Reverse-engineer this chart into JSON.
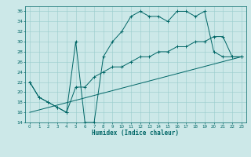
{
  "xlabel": "Humidex (Indice chaleur)",
  "ylabel": "",
  "xlim": [
    -0.5,
    23.5
  ],
  "ylim": [
    14,
    37
  ],
  "yticks": [
    14,
    16,
    18,
    20,
    22,
    24,
    26,
    28,
    30,
    32,
    34,
    36
  ],
  "xticks": [
    0,
    1,
    2,
    3,
    4,
    5,
    6,
    7,
    8,
    9,
    10,
    11,
    12,
    13,
    14,
    15,
    16,
    17,
    18,
    19,
    20,
    21,
    22,
    23
  ],
  "bg_color": "#cce8e8",
  "grid_color": "#99cccc",
  "line_color": "#006666",
  "line1_x": [
    0,
    1,
    2,
    3,
    4,
    5,
    6,
    7,
    8,
    9,
    10,
    11,
    12,
    13,
    14,
    15,
    16,
    17,
    18,
    19,
    20,
    21,
    22,
    23
  ],
  "line1_y": [
    22,
    19,
    18,
    17,
    16,
    30,
    14,
    14,
    27,
    30,
    32,
    35,
    36,
    35,
    35,
    34,
    36,
    36,
    35,
    36,
    28,
    27,
    27,
    27
  ],
  "line2_x": [
    0,
    1,
    2,
    3,
    4,
    5,
    6,
    7,
    8,
    9,
    10,
    11,
    12,
    13,
    14,
    15,
    16,
    17,
    18,
    19,
    20,
    21,
    22,
    23
  ],
  "line2_y": [
    22,
    19,
    18,
    17,
    16,
    21,
    21,
    23,
    24,
    25,
    25,
    26,
    27,
    27,
    28,
    28,
    29,
    29,
    30,
    30,
    31,
    31,
    27,
    27
  ],
  "line3_x": [
    0,
    23
  ],
  "line3_y": [
    16,
    27
  ]
}
